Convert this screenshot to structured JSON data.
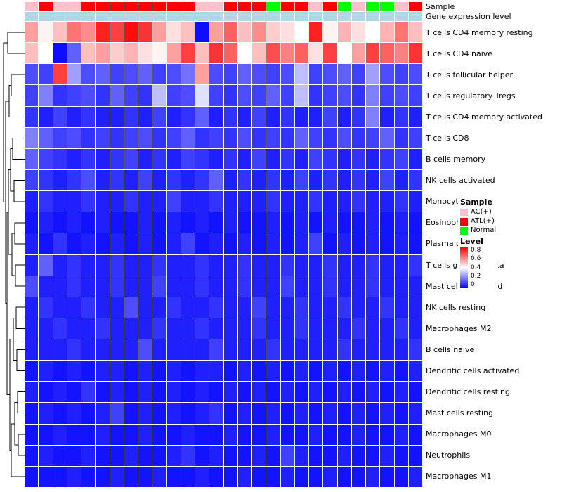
{
  "annotations": {
    "sample_label": "Sample",
    "gene_label": "Gene expression level"
  },
  "legend": {
    "sample_title": "Sample",
    "sample_items": [
      {
        "label": "AC(+)",
        "color": "#FFC0CB"
      },
      {
        "label": "ATL(+)",
        "color": "#FF0000"
      },
      {
        "label": "Normal",
        "color": "#00FF00"
      }
    ],
    "level_title": "Level",
    "level_ticks": [
      "0.8",
      "0.6",
      "0.4",
      "0.2",
      "0"
    ],
    "gradient": {
      "top": "#FF0000",
      "mid": "#FFFFFF",
      "bottom": "#0000FF"
    }
  },
  "chart_data": {
    "type": "heatmap",
    "title": "",
    "legend_position": "right",
    "rows": [
      "T cells CD4 memory resting",
      "T cells CD4 naive",
      "T cells follicular helper",
      "T cells regulatory Tregs",
      "T cells CD4 memory activated",
      "T cells CD8",
      "B cells memory",
      "NK cells activated",
      "Monocytes",
      "Eosinophils",
      "Plasma cells",
      "T cells gamma delta",
      "Mast cells activated",
      "NK cells resting",
      "Macrophages M2",
      "B cells naive",
      "Dendritic cells activated",
      "Dendritic cells resting",
      "Mast cells resting",
      "Macrophages M0",
      "Neutrophils",
      "Macrophages M1"
    ],
    "n_columns": 28,
    "column_annotation_sample": [
      "AC(+)",
      "ATL(+)",
      "AC(+)",
      "AC(+)",
      "ATL(+)",
      "ATL(+)",
      "ATL(+)",
      "ATL(+)",
      "ATL(+)",
      "ATL(+)",
      "ATL(+)",
      "ATL(+)",
      "AC(+)",
      "AC(+)",
      "ATL(+)",
      "ATL(+)",
      "ATL(+)",
      "Normal",
      "ATL(+)",
      "ATL(+)",
      "AC(+)",
      "ATL(+)",
      "Normal",
      "AC(+)",
      "Normal",
      "Normal",
      "AC(+)",
      "ATL(+)"
    ],
    "gene_expression_annotation_color": "#ADD8E6",
    "color_scale": {
      "domain": [
        0,
        0.4,
        0.8
      ],
      "colors": [
        "#0000FF",
        "#FFFFFF",
        "#FF0000"
      ]
    },
    "values": [
      [
        0.55,
        0.42,
        0.5,
        0.62,
        0.58,
        0.75,
        0.7,
        0.78,
        0.72,
        0.55,
        0.45,
        0.5,
        0.02,
        0.55,
        0.65,
        0.5,
        0.58,
        0.48,
        0.45,
        0.4,
        0.75,
        0.42,
        0.52,
        0.45,
        0.4,
        0.52,
        0.62,
        0.5
      ],
      [
        0.5,
        0.4,
        0.02,
        0.15,
        0.5,
        0.55,
        0.48,
        0.52,
        0.45,
        0.42,
        0.55,
        0.7,
        0.5,
        0.72,
        0.65,
        0.4,
        0.5,
        0.68,
        0.6,
        0.65,
        0.45,
        0.7,
        0.4,
        0.55,
        0.7,
        0.65,
        0.6,
        0.72
      ],
      [
        0.12,
        0.1,
        0.7,
        0.25,
        0.12,
        0.15,
        0.1,
        0.12,
        0.15,
        0.1,
        0.12,
        0.18,
        0.55,
        0.12,
        0.1,
        0.15,
        0.12,
        0.1,
        0.12,
        0.3,
        0.1,
        0.12,
        0.15,
        0.1,
        0.25,
        0.12,
        0.1,
        0.12
      ],
      [
        0.1,
        0.2,
        0.08,
        0.1,
        0.12,
        0.08,
        0.15,
        0.1,
        0.08,
        0.3,
        0.1,
        0.12,
        0.35,
        0.1,
        0.08,
        0.12,
        0.1,
        0.15,
        0.1,
        0.3,
        0.08,
        0.1,
        0.12,
        0.08,
        0.2,
        0.1,
        0.12,
        0.1
      ],
      [
        0.08,
        0.05,
        0.1,
        0.05,
        0.08,
        0.05,
        0.05,
        0.08,
        0.05,
        0.1,
        0.05,
        0.08,
        0.15,
        0.05,
        0.08,
        0.05,
        0.1,
        0.05,
        0.08,
        0.05,
        0.05,
        0.1,
        0.05,
        0.08,
        0.2,
        0.05,
        0.08,
        0.05
      ],
      [
        0.2,
        0.15,
        0.1,
        0.12,
        0.08,
        0.1,
        0.08,
        0.1,
        0.12,
        0.08,
        0.1,
        0.15,
        0.08,
        0.1,
        0.08,
        0.12,
        0.08,
        0.1,
        0.08,
        0.15,
        0.1,
        0.08,
        0.12,
        0.08,
        0.1,
        0.15,
        0.08,
        0.1
      ],
      [
        0.15,
        0.1,
        0.08,
        0.05,
        0.08,
        0.05,
        0.08,
        0.1,
        0.05,
        0.08,
        0.05,
        0.1,
        0.08,
        0.05,
        0.08,
        0.05,
        0.1,
        0.05,
        0.08,
        0.05,
        0.1,
        0.08,
        0.05,
        0.08,
        0.05,
        0.08,
        0.1,
        0.05
      ],
      [
        0.1,
        0.08,
        0.05,
        0.08,
        0.12,
        0.05,
        0.08,
        0.05,
        0.1,
        0.05,
        0.08,
        0.05,
        0.08,
        0.15,
        0.05,
        0.08,
        0.05,
        0.08,
        0.05,
        0.1,
        0.05,
        0.08,
        0.05,
        0.08,
        0.05,
        0.1,
        0.05,
        0.08
      ],
      [
        0.05,
        0.08,
        0.05,
        0.05,
        0.08,
        0.05,
        0.05,
        0.08,
        0.05,
        0.05,
        0.1,
        0.05,
        0.05,
        0.08,
        0.05,
        0.05,
        0.05,
        0.08,
        0.05,
        0.05,
        0.08,
        0.05,
        0.05,
        0.08,
        0.05,
        0.05,
        0.08,
        0.05
      ],
      [
        0.03,
        0.05,
        0.03,
        0.05,
        0.03,
        0.05,
        0.03,
        0.03,
        0.05,
        0.03,
        0.05,
        0.03,
        0.05,
        0.03,
        0.05,
        0.03,
        0.03,
        0.05,
        0.03,
        0.05,
        0.03,
        0.05,
        0.03,
        0.03,
        0.05,
        0.03,
        0.05,
        0.03
      ],
      [
        0.05,
        0.03,
        0.08,
        0.03,
        0.05,
        0.03,
        0.05,
        0.03,
        0.05,
        0.03,
        0.05,
        0.1,
        0.03,
        0.05,
        0.03,
        0.05,
        0.03,
        0.05,
        0.03,
        0.05,
        0.1,
        0.03,
        0.05,
        0.03,
        0.05,
        0.03,
        0.05,
        0.03
      ],
      [
        0.05,
        0.15,
        0.05,
        0.08,
        0.05,
        0.05,
        0.08,
        0.05,
        0.05,
        0.08,
        0.05,
        0.05,
        0.08,
        0.05,
        0.05,
        0.08,
        0.05,
        0.05,
        0.08,
        0.05,
        0.05,
        0.08,
        0.05,
        0.05,
        0.08,
        0.05,
        0.05,
        0.08
      ],
      [
        0.12,
        0.05,
        0.05,
        0.08,
        0.05,
        0.05,
        0.08,
        0.05,
        0.05,
        0.1,
        0.05,
        0.05,
        0.08,
        0.05,
        0.05,
        0.08,
        0.05,
        0.05,
        0.1,
        0.05,
        0.05,
        0.08,
        0.05,
        0.05,
        0.08,
        0.05,
        0.05,
        0.05
      ],
      [
        0.05,
        0.08,
        0.05,
        0.05,
        0.08,
        0.05,
        0.05,
        0.12,
        0.05,
        0.05,
        0.08,
        0.05,
        0.05,
        0.08,
        0.05,
        0.05,
        0.1,
        0.05,
        0.05,
        0.08,
        0.05,
        0.05,
        0.08,
        0.05,
        0.05,
        0.08,
        0.05,
        0.05
      ],
      [
        0.05,
        0.05,
        0.08,
        0.05,
        0.05,
        0.08,
        0.05,
        0.05,
        0.05,
        0.08,
        0.05,
        0.05,
        0.08,
        0.05,
        0.05,
        0.05,
        0.08,
        0.05,
        0.05,
        0.08,
        0.05,
        0.05,
        0.05,
        0.08,
        0.05,
        0.05,
        0.08,
        0.05
      ],
      [
        0.05,
        0.05,
        0.05,
        0.08,
        0.05,
        0.05,
        0.05,
        0.05,
        0.12,
        0.05,
        0.05,
        0.05,
        0.05,
        0.1,
        0.05,
        0.05,
        0.05,
        0.08,
        0.05,
        0.05,
        0.05,
        0.05,
        0.08,
        0.05,
        0.05,
        0.05,
        0.05,
        0.08
      ],
      [
        0.03,
        0.05,
        0.03,
        0.05,
        0.03,
        0.05,
        0.05,
        0.03,
        0.05,
        0.03,
        0.05,
        0.03,
        0.05,
        0.05,
        0.03,
        0.05,
        0.03,
        0.05,
        0.03,
        0.05,
        0.03,
        0.05,
        0.03,
        0.05,
        0.03,
        0.05,
        0.03,
        0.05
      ],
      [
        0.05,
        0.03,
        0.05,
        0.03,
        0.08,
        0.03,
        0.05,
        0.03,
        0.05,
        0.03,
        0.05,
        0.03,
        0.05,
        0.03,
        0.05,
        0.03,
        0.05,
        0.03,
        0.05,
        0.03,
        0.05,
        0.03,
        0.05,
        0.03,
        0.05,
        0.03,
        0.05,
        0.03
      ],
      [
        0.03,
        0.05,
        0.03,
        0.05,
        0.03,
        0.05,
        0.1,
        0.03,
        0.05,
        0.03,
        0.05,
        0.03,
        0.05,
        0.08,
        0.03,
        0.05,
        0.03,
        0.05,
        0.03,
        0.05,
        0.03,
        0.05,
        0.03,
        0.05,
        0.03,
        0.05,
        0.03,
        0.05
      ],
      [
        0.03,
        0.03,
        0.05,
        0.03,
        0.03,
        0.05,
        0.03,
        0.03,
        0.05,
        0.03,
        0.03,
        0.05,
        0.03,
        0.03,
        0.05,
        0.03,
        0.03,
        0.05,
        0.03,
        0.03,
        0.05,
        0.03,
        0.03,
        0.05,
        0.03,
        0.03,
        0.05,
        0.03
      ],
      [
        0.03,
        0.05,
        0.03,
        0.03,
        0.05,
        0.03,
        0.03,
        0.05,
        0.03,
        0.03,
        0.05,
        0.08,
        0.03,
        0.05,
        0.03,
        0.03,
        0.05,
        0.03,
        0.1,
        0.05,
        0.03,
        0.03,
        0.05,
        0.03,
        0.03,
        0.05,
        0.03,
        0.03
      ],
      [
        0.03,
        0.03,
        0.03,
        0.05,
        0.03,
        0.03,
        0.05,
        0.03,
        0.03,
        0.05,
        0.03,
        0.03,
        0.05,
        0.03,
        0.03,
        0.05,
        0.03,
        0.03,
        0.05,
        0.03,
        0.03,
        0.05,
        0.03,
        0.03,
        0.05,
        0.03,
        0.03,
        0.05
      ]
    ]
  }
}
